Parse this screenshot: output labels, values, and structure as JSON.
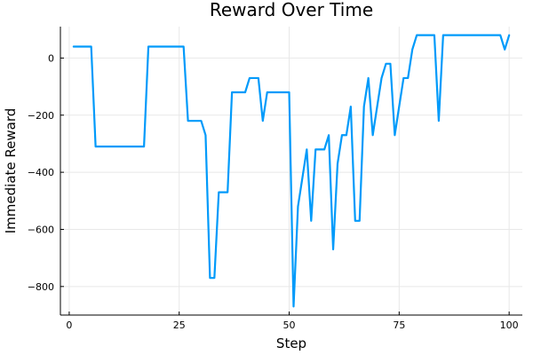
{
  "chart_data": {
    "type": "line",
    "title": "Reward Over Time",
    "xlabel": "Step",
    "ylabel": "Immediate Reward",
    "xlim": [
      -2,
      103
    ],
    "ylim": [
      -900,
      110
    ],
    "xticks": [
      0,
      25,
      50,
      75,
      100
    ],
    "yticks": [
      -800,
      -600,
      -400,
      -200,
      0
    ],
    "grid": true,
    "legend": "none",
    "colors": {
      "series": "#009AFA",
      "grid": "#e8e8e8",
      "axis": "#000000"
    },
    "series": [
      {
        "x": [
          1,
          2,
          3,
          4,
          5,
          6,
          7,
          8,
          9,
          10,
          11,
          12,
          13,
          14,
          15,
          16,
          17,
          18,
          19,
          20,
          21,
          22,
          23,
          24,
          25,
          26,
          27,
          28,
          29,
          30,
          31,
          32,
          33,
          34,
          35,
          36,
          37,
          38,
          39,
          40,
          41,
          42,
          43,
          44,
          45,
          46,
          47,
          48,
          49,
          50,
          51,
          52,
          53,
          54,
          55,
          56,
          57,
          58,
          59,
          60,
          61,
          62,
          63,
          64,
          65,
          66,
          67,
          68,
          69,
          70,
          71,
          72,
          73,
          74,
          75,
          76,
          77,
          78,
          79,
          80,
          81,
          82,
          83,
          84,
          85,
          86,
          87,
          88,
          89,
          90,
          91,
          92,
          93,
          94,
          95,
          96,
          97,
          98,
          99,
          100
        ],
        "y": [
          40,
          40,
          40,
          40,
          40,
          -310,
          -310,
          -310,
          -310,
          -310,
          -310,
          -310,
          -310,
          -310,
          -310,
          -310,
          -310,
          40,
          40,
          40,
          40,
          40,
          40,
          40,
          40,
          40,
          -220,
          -220,
          -220,
          -220,
          -270,
          -770,
          -770,
          -470,
          -470,
          -470,
          -120,
          -120,
          -120,
          -120,
          -70,
          -70,
          -70,
          -220,
          -120,
          -120,
          -120,
          -120,
          -120,
          -120,
          -870,
          -520,
          -420,
          -320,
          -570,
          -320,
          -320,
          -320,
          -270,
          -670,
          -370,
          -270,
          -270,
          -170,
          -570,
          -570,
          -170,
          -70,
          -270,
          -170,
          -70,
          -20,
          -20,
          -270,
          -170,
          -70,
          -70,
          30,
          80,
          80,
          80,
          80,
          80,
          -220,
          80,
          80,
          80,
          80,
          80,
          80,
          80,
          80,
          80,
          80,
          80,
          80,
          80,
          80,
          30,
          80
        ]
      }
    ]
  }
}
